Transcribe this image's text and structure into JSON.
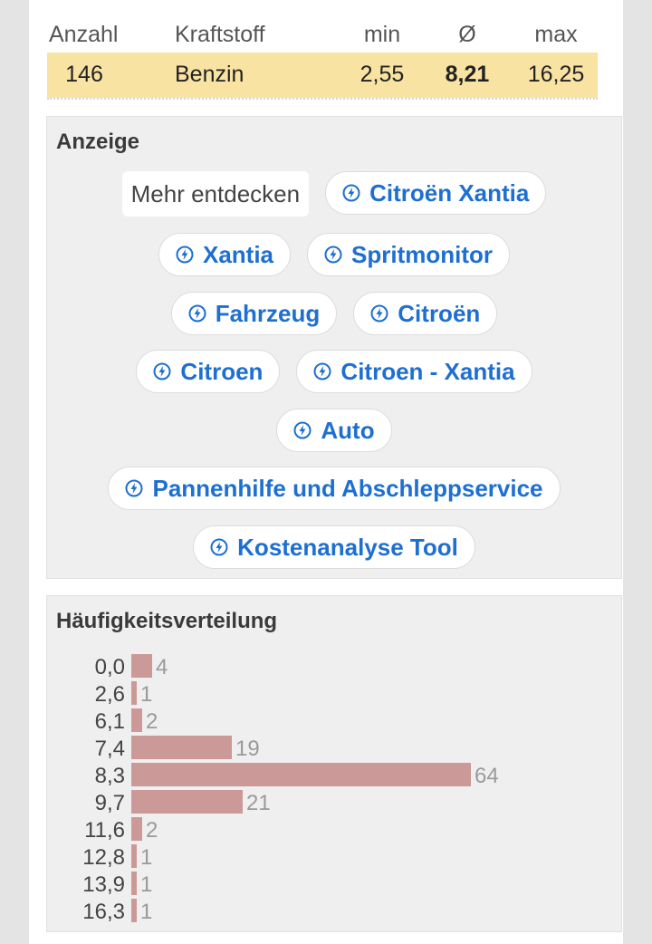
{
  "stats": {
    "headers": {
      "count": "Anzahl",
      "fuel": "Kraftstoff",
      "min": "min",
      "avg": "Ø",
      "max": "max"
    },
    "row": {
      "count": "146",
      "fuel": "Benzin",
      "min": "2,55",
      "avg": "8,21",
      "max": "16,25"
    }
  },
  "ad": {
    "title": "Anzeige",
    "discover_label": "Mehr entdecken",
    "chips": [
      "Citroën Xantia",
      "Xantia",
      "Spritmonitor",
      "Fahrzeug",
      "Citroën",
      "Citroen",
      "Citroen - Xantia",
      "Auto",
      "Pannenhilfe und Abschleppservice",
      "Kostenanalyse Tool"
    ],
    "chip_icon": "bolt-circle-icon",
    "chip_color": "#1d6fd1"
  },
  "distribution": {
    "title": "Häufigkeitsverteilung",
    "bar_color": "#cc9999",
    "max_count": 64,
    "rows": [
      {
        "label": "0,0",
        "count": "4"
      },
      {
        "label": "2,6",
        "count": "1"
      },
      {
        "label": "6,1",
        "count": "2"
      },
      {
        "label": "7,4",
        "count": "19"
      },
      {
        "label": "8,3",
        "count": "64"
      },
      {
        "label": "9,7",
        "count": "21"
      },
      {
        "label": "11,6",
        "count": "2"
      },
      {
        "label": "12,8",
        "count": "1"
      },
      {
        "label": "13,9",
        "count": "1"
      },
      {
        "label": "16,3",
        "count": "1"
      }
    ]
  }
}
